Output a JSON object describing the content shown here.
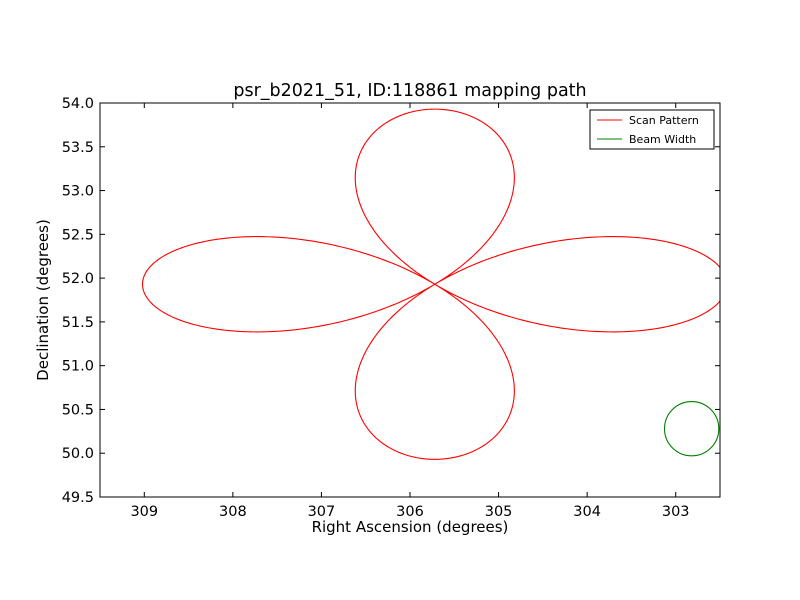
{
  "chart_data": {
    "type": "line",
    "title": "psr_b2021_51, ID:118861 mapping path",
    "xlabel": "Right Ascension (degrees)",
    "ylabel": "Declination (degrees)",
    "xlim": [
      309.5,
      302.5
    ],
    "ylim": [
      49.5,
      54.0
    ],
    "x_ticks": [
      309,
      308,
      307,
      306,
      305,
      304,
      303
    ],
    "x_tick_labels": [
      "309",
      "308",
      "307",
      "306",
      "305",
      "304",
      "303"
    ],
    "y_ticks": [
      49.5,
      50.0,
      50.5,
      51.0,
      51.5,
      52.0,
      52.5,
      53.0,
      53.5,
      54.0
    ],
    "y_tick_labels": [
      "49.5",
      "50.0",
      "50.5",
      "51.0",
      "51.5",
      "52.0",
      "52.5",
      "53.0",
      "53.5",
      "54.0"
    ],
    "grid": false,
    "legend_position": "top-right",
    "series": [
      {
        "name": "Scan Pattern",
        "color": "#ff0000",
        "shape": "four-petal rosette scan",
        "center": [
          305.72,
          51.93
        ],
        "petal_reach_ra": 3.3,
        "petal_reach_dec": 2.0,
        "x_range": [
          302.47,
          308.97
        ],
        "y_range": [
          49.93,
          53.91
        ]
      },
      {
        "name": "Beam Width",
        "color": "#008000",
        "shape": "circle",
        "center": [
          302.82,
          50.28
        ],
        "radius_dec": 0.31
      }
    ]
  }
}
